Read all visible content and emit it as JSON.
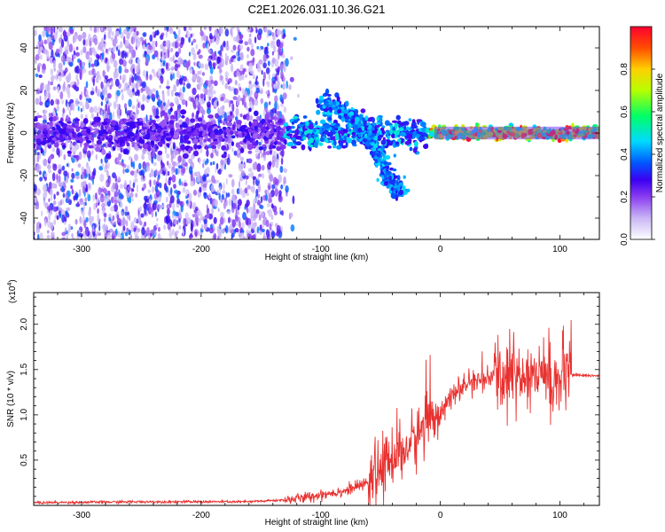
{
  "title": "C2E1.2026.031.10.36.G21",
  "colors": {
    "snr_line": "#e8312f",
    "background": "#ffffff",
    "colormap": [
      "#ffffff",
      "#c9b6f5",
      "#8a3cf0",
      "#3b00f2",
      "#0057ff",
      "#00d9ff",
      "#00ff66",
      "#b6ff00",
      "#ffd000",
      "#ff4d00",
      "#ff0030"
    ]
  },
  "chart_data": [
    {
      "type": "heatmap",
      "xlabel": "Height of straight line (km)",
      "ylabel": "Frequency (Hz)",
      "xlim": [
        -340,
        133
      ],
      "ylim": [
        -50,
        50
      ],
      "xticks": [
        -300,
        -200,
        -100,
        0,
        100
      ],
      "yticks": [
        -40,
        -20,
        0,
        20,
        40
      ],
      "colorbar": {
        "label": "Normalized spectral amplitude",
        "range": [
          0.0,
          1.0
        ],
        "ticks": [
          0.0,
          0.2,
          0.4,
          0.6,
          0.8
        ]
      },
      "description_values": {
        "noise_region_km": [
          -340,
          -130
        ],
        "signal_center_hz": 0,
        "signal_branch": [
          {
            "x": -100,
            "y": 15
          },
          {
            "x": -75,
            "y": 8
          },
          {
            "x": -55,
            "y": -5
          },
          {
            "x": -45,
            "y": -20
          },
          {
            "x": -35,
            "y": -27
          }
        ],
        "strong_amplitude_region_km": [
          -10,
          105
        ]
      }
    },
    {
      "type": "line",
      "xlabel": "Height of straight line (km)",
      "ylabel": "SNR (10 * v/v)",
      "y_multiplier": "(x10",
      "y_multiplier_exp": "4",
      "xlim": [
        -340,
        133
      ],
      "ylim": [
        0,
        2.35
      ],
      "xticks": [
        -300,
        -200,
        -100,
        0,
        100
      ],
      "yticks": [
        0.5,
        1.0,
        1.5,
        2.0
      ],
      "ytick_labels": [
        "0.5",
        "1.0",
        "1.5",
        "2.0"
      ],
      "series": [
        {
          "x": [
            -340,
            -250,
            -160,
            -130,
            -110,
            -100,
            -80,
            -60,
            -50,
            -40,
            -30,
            -20,
            -10,
            0,
            10,
            20,
            30,
            40,
            50,
            60,
            70,
            80,
            90,
            100,
            105,
            110,
            133
          ],
          "y": [
            0.03,
            0.04,
            0.04,
            0.06,
            0.09,
            0.12,
            0.16,
            0.25,
            0.4,
            0.55,
            0.6,
            0.75,
            0.95,
            1.05,
            1.2,
            1.32,
            1.38,
            1.4,
            1.43,
            1.45,
            1.44,
            1.45,
            1.42,
            1.35,
            1.45,
            1.44,
            1.43
          ]
        }
      ]
    }
  ]
}
